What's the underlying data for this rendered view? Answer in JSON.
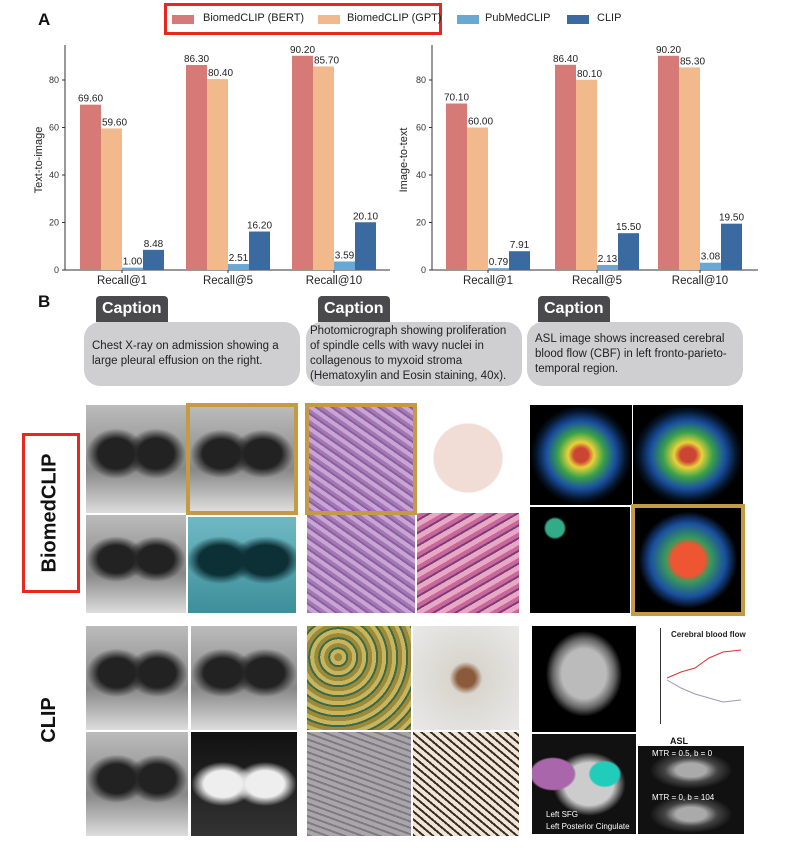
{
  "panel_a_label": "A",
  "panel_b_label": "B",
  "legend": [
    {
      "name": "BiomedCLIP (BERT)",
      "color": "#d67a78"
    },
    {
      "name": "BiomedCLIP (GPT)",
      "color": "#f2b98d"
    },
    {
      "name": "PubMedCLIP",
      "color": "#6aa8d4"
    },
    {
      "name": "CLIP",
      "color": "#3a6aa0"
    }
  ],
  "highlight_color": "#e8281e",
  "chart_data": [
    {
      "type": "bar",
      "ylabel": "Text-to-image",
      "xlabel": "",
      "categories": [
        "Recall@1",
        "Recall@5",
        "Recall@10"
      ],
      "ylim": [
        0,
        95
      ],
      "yticks": [
        "0",
        "20",
        "40",
        "60",
        "80"
      ],
      "grid": false,
      "legend": "top",
      "series": [
        {
          "name": "BiomedCLIP (BERT)",
          "values": [
            69.6,
            86.3,
            90.2
          ],
          "labels": [
            "69.60",
            "86.30",
            "90.20"
          ]
        },
        {
          "name": "BiomedCLIP (GPT)",
          "values": [
            59.6,
            80.4,
            85.7
          ],
          "labels": [
            "59.60",
            "80.40",
            "85.70"
          ]
        },
        {
          "name": "PubMedCLIP",
          "values": [
            1.0,
            2.51,
            3.59
          ],
          "labels": [
            "1.00",
            "2.51",
            "3.59"
          ]
        },
        {
          "name": "CLIP",
          "values": [
            8.48,
            16.2,
            20.1
          ],
          "labels": [
            "8.48",
            "16.20",
            "20.10"
          ]
        }
      ]
    },
    {
      "type": "bar",
      "ylabel": "Image-to-text",
      "xlabel": "",
      "categories": [
        "Recall@1",
        "Recall@5",
        "Recall@10"
      ],
      "ylim": [
        0,
        95
      ],
      "yticks": [
        "0",
        "20",
        "40",
        "60",
        "80"
      ],
      "grid": false,
      "legend": "top",
      "series": [
        {
          "name": "BiomedCLIP (BERT)",
          "values": [
            70.1,
            86.4,
            90.2
          ],
          "labels": [
            "70.10",
            "86.40",
            "90.20"
          ]
        },
        {
          "name": "BiomedCLIP (GPT)",
          "values": [
            60.0,
            80.1,
            85.3
          ],
          "labels": [
            "60.00",
            "80.10",
            "85.30"
          ]
        },
        {
          "name": "PubMedCLIP",
          "values": [
            0.79,
            2.13,
            3.08
          ],
          "labels": [
            "0.79",
            "2.13",
            "3.08"
          ]
        },
        {
          "name": "CLIP",
          "values": [
            7.91,
            15.5,
            19.5
          ],
          "labels": [
            "7.91",
            "15.50",
            "19.50"
          ]
        }
      ]
    }
  ],
  "captions": [
    {
      "tag": "Caption",
      "text": "Chest X-ray on admission showing a large pleural effusion on the right."
    },
    {
      "tag": "Caption",
      "text": "Photomicrograph showing proliferation of spindle cells with wavy nuclei in collagenous to myxoid stroma (Hematoxylin and Eosin staining, 40x)."
    },
    {
      "tag": "Caption",
      "text": "ASL image shows increased cerebral blood flow (CBF) in left fronto-parieto-temporal region."
    }
  ],
  "rows": {
    "biomedclip": "BiomedCLIP",
    "clip": "CLIP"
  },
  "image_text": {
    "cbf_title": "Cerebral blood flow",
    "asl": "ASL",
    "mtr1": "MTR = 0.5, b = 0",
    "mtr2": "MTR = 0, b = 104",
    "left_sfg": "Left SFG",
    "left_pc": "Left Posterior Cingulate"
  }
}
